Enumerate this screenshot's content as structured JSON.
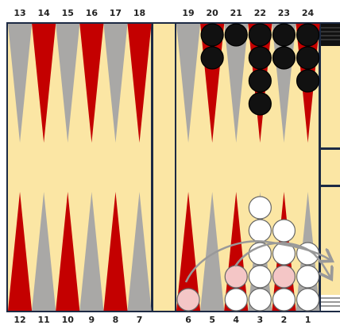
{
  "board": {
    "top_labels": [
      "13",
      "14",
      "15",
      "16",
      "17",
      "18",
      "19",
      "20",
      "21",
      "22",
      "23",
      "24"
    ],
    "bottom_labels": [
      "12",
      "11",
      "10",
      "9",
      "8",
      "7",
      "6",
      "5",
      "4",
      "3",
      "2",
      "1"
    ],
    "stacks": [
      {
        "point": 20,
        "colors": [
          "#111",
          "#111"
        ]
      },
      {
        "point": 21,
        "colors": [
          "#111"
        ]
      },
      {
        "point": 22,
        "colors": [
          "#111",
          "#111",
          "#111",
          "#111"
        ]
      },
      {
        "point": 23,
        "colors": [
          "#111",
          "#111"
        ]
      },
      {
        "point": 24,
        "colors": [
          "#111",
          "#111",
          "#111"
        ]
      },
      {
        "point": 6,
        "colors": [
          "#f4c6c6"
        ]
      },
      {
        "point": 4,
        "colors": [
          "#fff",
          "#f4c6c6"
        ]
      },
      {
        "point": 3,
        "colors": [
          "#fff",
          "#fff",
          "#fff",
          "#fff",
          "#fff"
        ]
      },
      {
        "point": 2,
        "colors": [
          "#fff",
          "#f4c6c6",
          "#fff",
          "#fff"
        ]
      },
      {
        "point": 1,
        "colors": [
          "#fff",
          "#fff",
          "#fff"
        ]
      }
    ]
  }
}
